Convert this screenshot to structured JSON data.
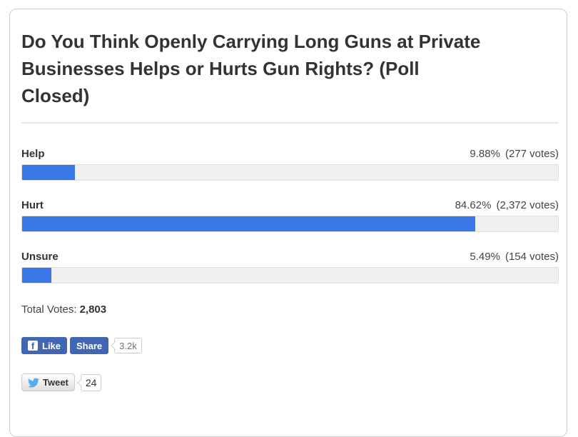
{
  "poll": {
    "title": "Do You Think Openly Carrying Long Guns at Private Businesses Helps or Hurts Gun Rights? (Poll Closed)",
    "title_lines": [
      "Do You Think Openly Carrying Long Guns at Private",
      "Businesses Helps or Hurts Gun Rights? (Poll",
      "Closed)"
    ],
    "answers": [
      {
        "label": "Help",
        "percent": "9.88%",
        "votes": "(277 votes)"
      },
      {
        "label": "Hurt",
        "percent": "84.62%",
        "votes": "(2,372 votes)"
      },
      {
        "label": "Unsure",
        "percent": "5.49%",
        "votes": "(154 votes)"
      }
    ],
    "total_label": "Total Votes:",
    "total_value": "2,803"
  },
  "social": {
    "facebook": {
      "icon_glyph": "f",
      "like_label": "Like",
      "share_label": "Share",
      "count": "3.2k"
    },
    "twitter": {
      "tweet_label": "Tweet",
      "count": "24"
    }
  },
  "colors": {
    "bar_fill": "#3b78e7",
    "bar_track": "#f0f0f0",
    "facebook_blue": "#4267b2",
    "twitter_blue": "#55acee"
  },
  "chart_data": {
    "type": "bar",
    "orientation": "horizontal",
    "title": "Do You Think Openly Carrying Long Guns at Private Businesses Helps or Hurts Gun Rights? (Poll Closed)",
    "categories": [
      "Help",
      "Hurt",
      "Unsure"
    ],
    "series": [
      {
        "name": "percent",
        "values": [
          9.88,
          84.62,
          5.49
        ]
      },
      {
        "name": "votes",
        "values": [
          277,
          2372,
          154
        ]
      }
    ],
    "total_votes": 2803,
    "xlim": [
      0,
      100
    ],
    "legend": false,
    "grid": false
  }
}
